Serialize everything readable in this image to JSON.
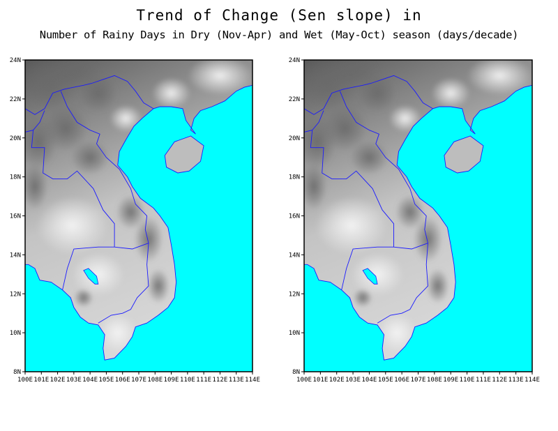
{
  "title": {
    "line1": "Trend of Change (Sen slope) in",
    "line2": "Number of Rainy Days in Dry (Nov-Apr) and Wet (May-Oct) season (days/decade)"
  },
  "maps": [
    {
      "panel": "left",
      "season": "Dry (Nov-Apr)"
    },
    {
      "panel": "right",
      "season": "Wet (May-Oct)"
    }
  ],
  "axes": {
    "lat_labels": [
      "24N",
      "22N",
      "20N",
      "18N",
      "16N",
      "14N",
      "12N",
      "10N",
      "8N"
    ],
    "lon_labels": [
      "100E",
      "101E",
      "102E",
      "103E",
      "104E",
      "105E",
      "106E",
      "107E",
      "108E",
      "109E",
      "110E",
      "111E",
      "112E",
      "113E",
      "114E"
    ]
  },
  "colors": {
    "sea": "#00ffff",
    "borders": "#1a1aff",
    "land_light": "#e8e8e8",
    "land_dark": "#4a4a4a"
  }
}
